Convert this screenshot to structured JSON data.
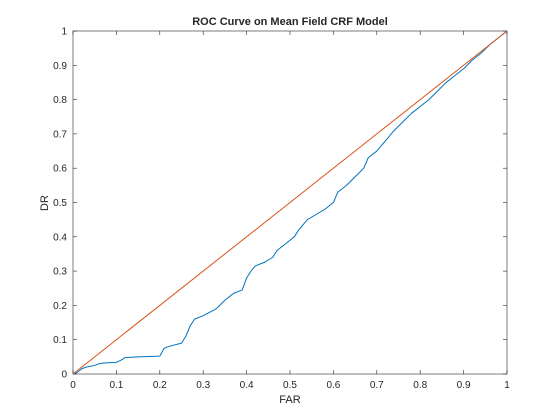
{
  "chart_data": {
    "type": "line",
    "title": "ROC Curve on Mean Field CRF Model",
    "xlabel": "FAR",
    "ylabel": "DR",
    "xlim": [
      0,
      1
    ],
    "ylim": [
      0,
      1
    ],
    "grid": false,
    "x_ticks": [
      "0",
      "0.1",
      "0.2",
      "0.3",
      "0.4",
      "0.5",
      "0.6",
      "0.7",
      "0.8",
      "0.9",
      "1"
    ],
    "y_ticks": [
      "0",
      "0.1",
      "0.2",
      "0.3",
      "0.4",
      "0.5",
      "0.6",
      "0.7",
      "0.8",
      "0.9",
      "1"
    ],
    "series": [
      {
        "color": "#0072BD",
        "x": [
          0,
          0.01,
          0.02,
          0.03,
          0.05,
          0.06,
          0.07,
          0.1,
          0.11,
          0.12,
          0.15,
          0.2,
          0.21,
          0.22,
          0.25,
          0.26,
          0.27,
          0.28,
          0.3,
          0.33,
          0.35,
          0.36,
          0.37,
          0.39,
          0.4,
          0.41,
          0.42,
          0.44,
          0.46,
          0.47,
          0.48,
          0.5,
          0.51,
          0.52,
          0.54,
          0.56,
          0.58,
          0.6,
          0.61,
          0.63,
          0.65,
          0.67,
          0.68,
          0.7,
          0.72,
          0.74,
          0.76,
          0.78,
          0.8,
          0.82,
          0.84,
          0.86,
          0.88,
          0.9,
          0.92,
          0.94,
          0.96,
          0.98,
          1.0
        ],
        "y": [
          0,
          0.005,
          0.015,
          0.02,
          0.025,
          0.03,
          0.032,
          0.034,
          0.04,
          0.048,
          0.05,
          0.052,
          0.075,
          0.08,
          0.09,
          0.11,
          0.14,
          0.16,
          0.17,
          0.19,
          0.215,
          0.225,
          0.235,
          0.245,
          0.28,
          0.3,
          0.315,
          0.325,
          0.34,
          0.36,
          0.37,
          0.39,
          0.4,
          0.42,
          0.45,
          0.465,
          0.48,
          0.5,
          0.53,
          0.55,
          0.575,
          0.6,
          0.63,
          0.65,
          0.68,
          0.71,
          0.735,
          0.76,
          0.78,
          0.8,
          0.825,
          0.85,
          0.87,
          0.89,
          0.915,
          0.935,
          0.96,
          0.98,
          1.0
        ]
      },
      {
        "color": "#D95319",
        "x": [
          0,
          1
        ],
        "y": [
          0,
          1
        ]
      }
    ]
  }
}
